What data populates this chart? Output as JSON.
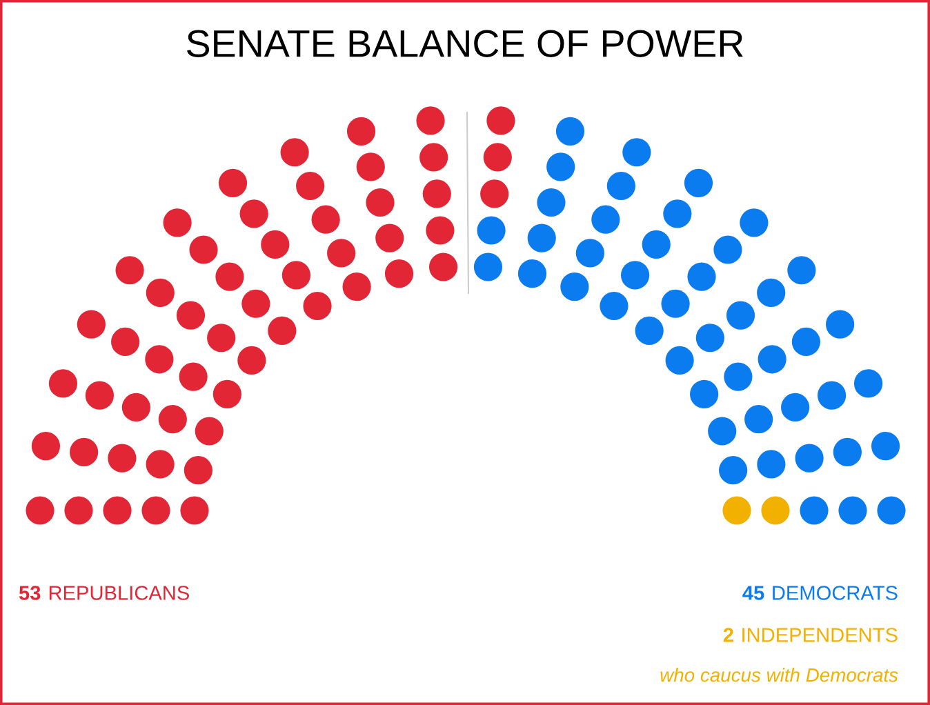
{
  "chart_data": {
    "type": "other",
    "title": "SENATE BALANCE OF POWER",
    "categories": [
      "REPUBLICANS",
      "DEMOCRATS",
      "INDEPENDENTS"
    ],
    "values": [
      53,
      45,
      2
    ],
    "value_labels": [
      "53",
      "45",
      "2"
    ],
    "colors": [
      "#e32636",
      "#0a7cf0",
      "#f2b000"
    ],
    "annotations": [
      "who caucus with Democrats"
    ]
  }
}
